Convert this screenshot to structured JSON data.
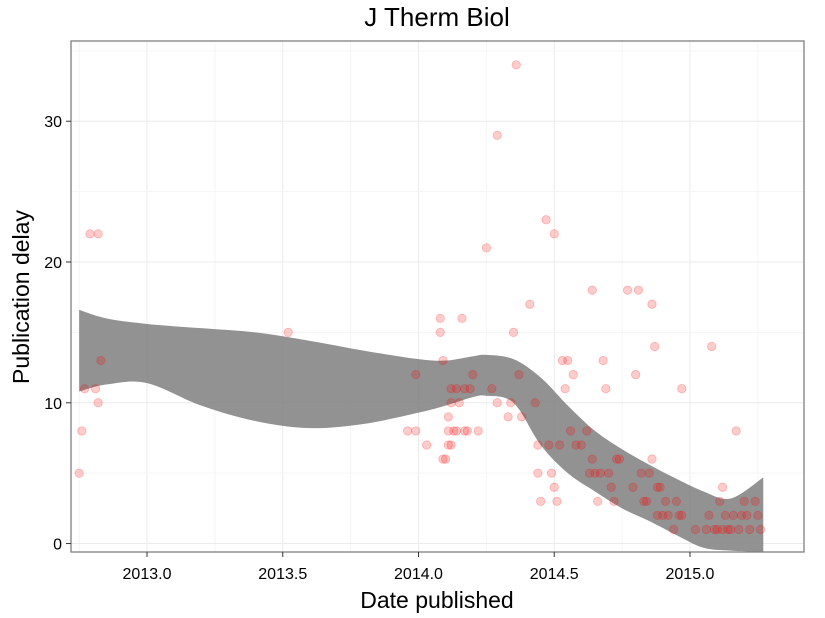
{
  "chart_data": {
    "type": "scatter",
    "title": "J Therm Biol",
    "xlabel": "Date published",
    "ylabel": "Publication delay",
    "xlim": [
      2012.72,
      2015.42
    ],
    "ylim": [
      -0.6,
      35.7
    ],
    "xticks": [
      2013.0,
      2013.5,
      2014.0,
      2014.5,
      2015.0
    ],
    "xtick_labels": [
      "2013.0",
      "2013.5",
      "2014.0",
      "2014.5",
      "2015.0"
    ],
    "yticks": [
      0,
      10,
      20,
      30
    ],
    "ytick_labels": [
      "0",
      "10",
      "20",
      "30"
    ],
    "grid": true,
    "point_color": "#ff0000",
    "smooth_color": "#7f7f7f",
    "points": [
      [
        2012.75,
        5
      ],
      [
        2012.76,
        8
      ],
      [
        2012.77,
        11
      ],
      [
        2012.79,
        22
      ],
      [
        2012.81,
        11
      ],
      [
        2012.82,
        10
      ],
      [
        2012.82,
        22
      ],
      [
        2012.83,
        13
      ],
      [
        2013.52,
        15
      ],
      [
        2013.96,
        8
      ],
      [
        2013.99,
        8
      ],
      [
        2013.99,
        12
      ],
      [
        2014.03,
        7
      ],
      [
        2014.08,
        15
      ],
      [
        2014.08,
        16
      ],
      [
        2014.09,
        13
      ],
      [
        2014.09,
        6
      ],
      [
        2014.1,
        6
      ],
      [
        2014.11,
        7
      ],
      [
        2014.11,
        8
      ],
      [
        2014.11,
        9
      ],
      [
        2014.12,
        10
      ],
      [
        2014.12,
        11
      ],
      [
        2014.12,
        7
      ],
      [
        2014.13,
        8
      ],
      [
        2014.14,
        8
      ],
      [
        2014.14,
        11
      ],
      [
        2014.15,
        10
      ],
      [
        2014.16,
        16
      ],
      [
        2014.17,
        11
      ],
      [
        2014.17,
        8
      ],
      [
        2014.18,
        8
      ],
      [
        2014.19,
        11
      ],
      [
        2014.2,
        12
      ],
      [
        2014.22,
        8
      ],
      [
        2014.25,
        21
      ],
      [
        2014.27,
        11
      ],
      [
        2014.29,
        29
      ],
      [
        2014.29,
        10
      ],
      [
        2014.33,
        9
      ],
      [
        2014.34,
        10
      ],
      [
        2014.35,
        15
      ],
      [
        2014.36,
        34
      ],
      [
        2014.37,
        12
      ],
      [
        2014.38,
        9
      ],
      [
        2014.41,
        17
      ],
      [
        2014.43,
        10
      ],
      [
        2014.44,
        7
      ],
      [
        2014.44,
        5
      ],
      [
        2014.45,
        3
      ],
      [
        2014.47,
        23
      ],
      [
        2014.48,
        7
      ],
      [
        2014.49,
        5
      ],
      [
        2014.5,
        22
      ],
      [
        2014.5,
        4
      ],
      [
        2014.51,
        3
      ],
      [
        2014.52,
        7
      ],
      [
        2014.53,
        13
      ],
      [
        2014.54,
        11
      ],
      [
        2014.55,
        13
      ],
      [
        2014.56,
        8
      ],
      [
        2014.57,
        12
      ],
      [
        2014.58,
        7
      ],
      [
        2014.6,
        7
      ],
      [
        2014.62,
        8
      ],
      [
        2014.63,
        5
      ],
      [
        2014.64,
        18
      ],
      [
        2014.64,
        6
      ],
      [
        2014.65,
        5
      ],
      [
        2014.66,
        3
      ],
      [
        2014.67,
        5
      ],
      [
        2014.68,
        13
      ],
      [
        2014.69,
        11
      ],
      [
        2014.7,
        5
      ],
      [
        2014.71,
        4
      ],
      [
        2014.72,
        3
      ],
      [
        2014.73,
        6
      ],
      [
        2014.74,
        6
      ],
      [
        2014.77,
        18
      ],
      [
        2014.79,
        4
      ],
      [
        2014.8,
        12
      ],
      [
        2014.81,
        18
      ],
      [
        2014.82,
        5
      ],
      [
        2014.83,
        3
      ],
      [
        2014.84,
        3
      ],
      [
        2014.85,
        5
      ],
      [
        2014.86,
        6
      ],
      [
        2014.86,
        17
      ],
      [
        2014.87,
        14
      ],
      [
        2014.88,
        4
      ],
      [
        2014.88,
        2
      ],
      [
        2014.89,
        4
      ],
      [
        2014.9,
        2
      ],
      [
        2014.91,
        3
      ],
      [
        2014.92,
        2
      ],
      [
        2014.94,
        1
      ],
      [
        2014.95,
        3
      ],
      [
        2014.96,
        2
      ],
      [
        2014.97,
        11
      ],
      [
        2014.97,
        2
      ],
      [
        2015.02,
        1
      ],
      [
        2015.06,
        1
      ],
      [
        2015.07,
        2
      ],
      [
        2015.08,
        14
      ],
      [
        2015.09,
        1
      ],
      [
        2015.1,
        1
      ],
      [
        2015.11,
        3
      ],
      [
        2015.12,
        1
      ],
      [
        2015.12,
        4
      ],
      [
        2015.13,
        2
      ],
      [
        2015.14,
        1
      ],
      [
        2015.15,
        1
      ],
      [
        2015.16,
        2
      ],
      [
        2015.17,
        8
      ],
      [
        2015.18,
        1
      ],
      [
        2015.19,
        2
      ],
      [
        2015.2,
        3
      ],
      [
        2015.21,
        2
      ],
      [
        2015.22,
        1
      ],
      [
        2015.24,
        3
      ],
      [
        2015.25,
        2
      ],
      [
        2015.26,
        1
      ]
    ],
    "smooth_band": {
      "x": [
        2012.75,
        2012.85,
        2013.0,
        2013.2,
        2013.4,
        2013.6,
        2013.8,
        2014.0,
        2014.1,
        2014.2,
        2014.25,
        2014.35,
        2014.45,
        2014.55,
        2014.65,
        2014.75,
        2014.85,
        2014.95,
        2015.05,
        2015.15,
        2015.27
      ],
      "upper": [
        16.6,
        16.0,
        15.6,
        15.3,
        15.0,
        14.4,
        13.7,
        13.1,
        13.0,
        13.3,
        13.4,
        13.1,
        11.8,
        9.8,
        8.0,
        6.7,
        5.6,
        4.6,
        3.7,
        3.2,
        4.7
      ],
      "lower": [
        10.8,
        11.3,
        11.4,
        9.8,
        8.7,
        8.2,
        8.5,
        9.3,
        9.8,
        10.4,
        10.5,
        10.0,
        7.0,
        5.0,
        3.7,
        2.5,
        1.6,
        0.6,
        -0.3,
        -0.5,
        -0.6
      ]
    }
  }
}
